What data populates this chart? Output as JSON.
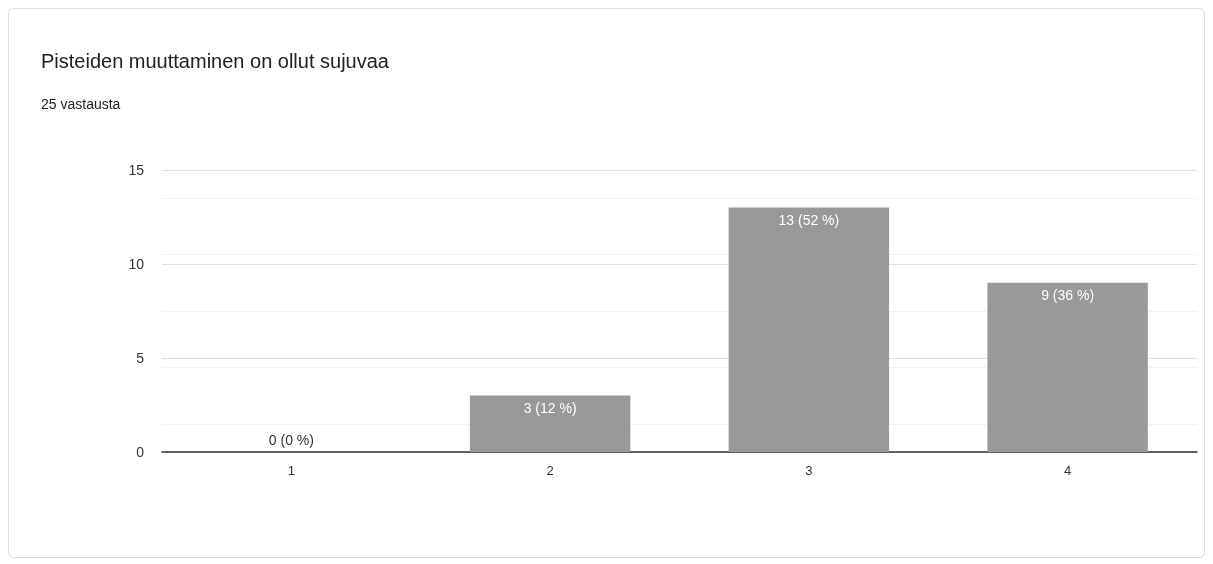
{
  "chart_data": {
    "type": "bar",
    "title": "Pisteiden muuttaminen on ollut sujuvaa",
    "subtitle": "25 vastausta",
    "categories": [
      "1",
      "2",
      "3",
      "4"
    ],
    "values": [
      0,
      3,
      13,
      9
    ],
    "value_labels": [
      "0 (0 %)",
      "3 (12 %)",
      "13 (52 %)",
      "9 (36 %)"
    ],
    "color": "#999999",
    "ylim": [
      0,
      15
    ],
    "yticks": [
      0,
      5,
      10,
      15
    ],
    "grid": "y"
  }
}
